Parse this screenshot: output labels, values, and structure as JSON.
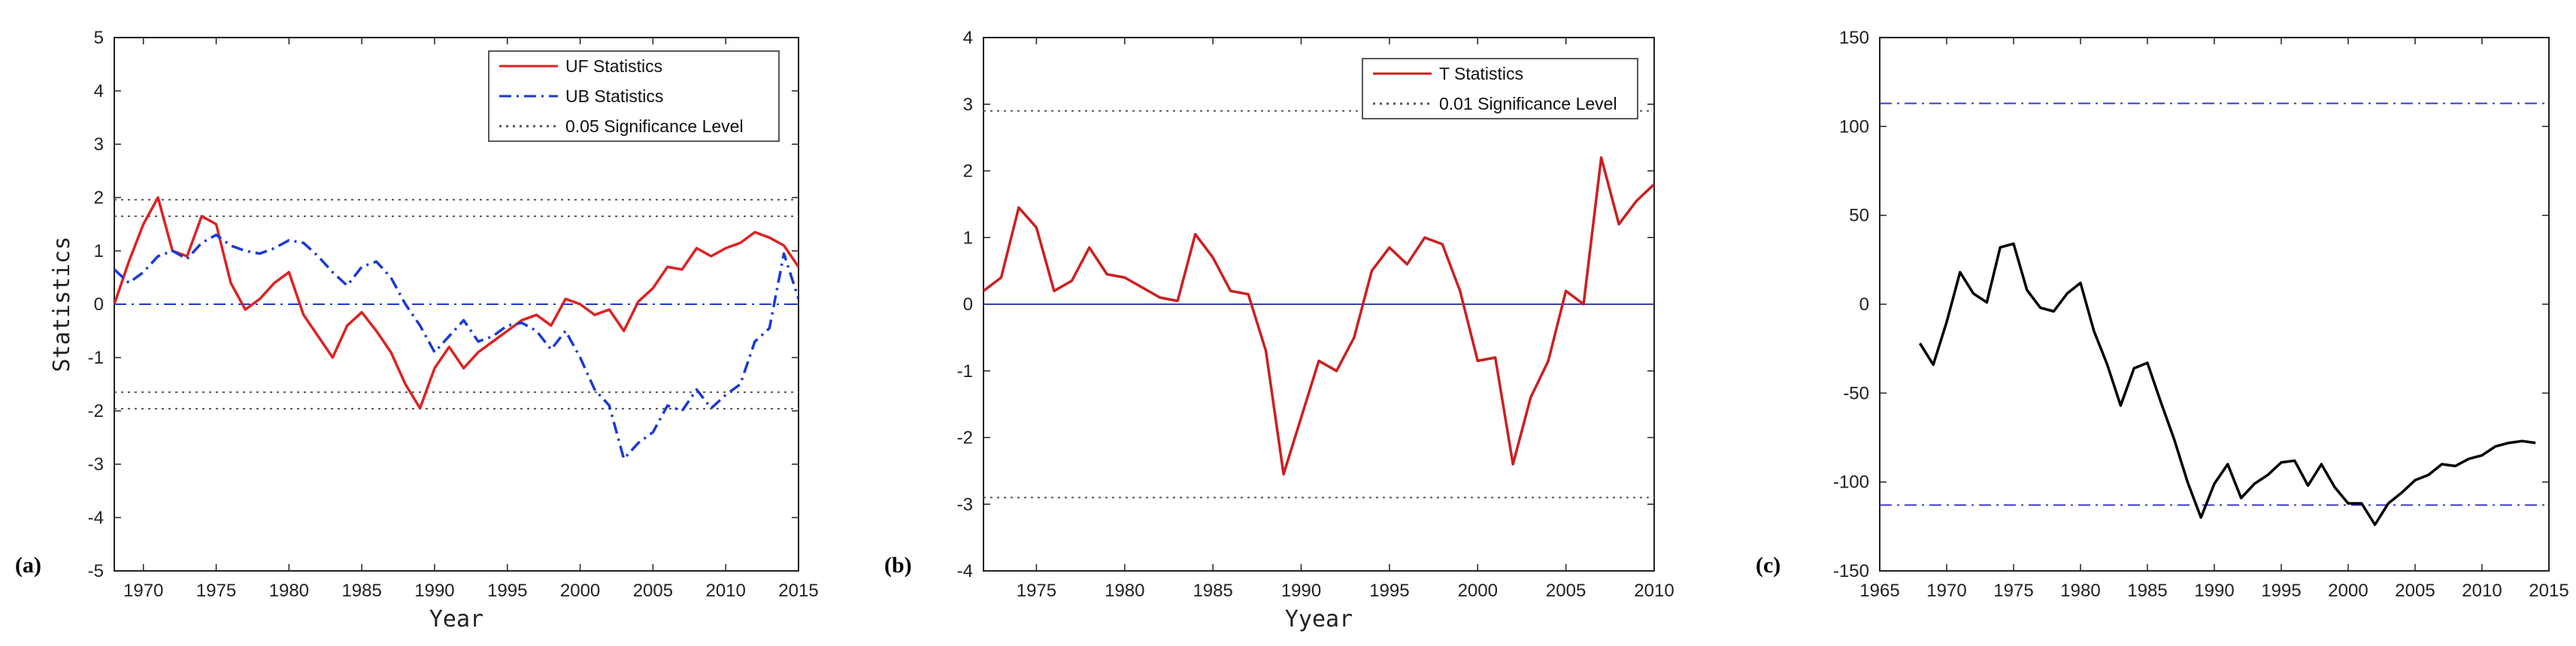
{
  "chart_data": [
    {
      "panel_label": "(a)",
      "type": "line",
      "xlabel": "Year",
      "ylabel": "Statistics",
      "xlim": [
        1968,
        2015
      ],
      "ylim": [
        -5,
        5
      ],
      "xticks": [
        1970,
        1975,
        1980,
        1985,
        1990,
        1995,
        2000,
        2005,
        2010,
        2015
      ],
      "xtick_labels": [
        "1970",
        "1975",
        "1980",
        "1985",
        "1990",
        "1995",
        "2000",
        "2005",
        "2010",
        "2015"
      ],
      "yticks": [
        -5,
        -4,
        -3,
        -2,
        -1,
        0,
        1,
        2,
        3,
        4,
        5
      ],
      "ytick_labels": [
        "-5",
        "-4",
        "-3",
        "-2",
        "-1",
        "0",
        "1",
        "2",
        "3",
        "4",
        "5"
      ],
      "grid": false,
      "legend_position": "top-right",
      "x": [
        1968,
        1969,
        1970,
        1971,
        1972,
        1973,
        1974,
        1975,
        1976,
        1977,
        1978,
        1979,
        1980,
        1981,
        1982,
        1983,
        1984,
        1985,
        1986,
        1987,
        1988,
        1989,
        1990,
        1991,
        1992,
        1993,
        1994,
        1995,
        1996,
        1997,
        1998,
        1999,
        2000,
        2001,
        2002,
        2003,
        2004,
        2005,
        2006,
        2007,
        2008,
        2009,
        2010,
        2011,
        2012,
        2013,
        2014,
        2015
      ],
      "series": [
        {
          "name": "UF Statistics",
          "style": "solid",
          "color": "#dd2222",
          "values": [
            0,
            0.8,
            1.5,
            2.0,
            1.0,
            0.9,
            1.65,
            1.5,
            0.4,
            -0.1,
            0.1,
            0.4,
            0.6,
            -0.2,
            -0.6,
            -1.0,
            -0.4,
            -0.15,
            -0.5,
            -0.9,
            -1.5,
            -1.95,
            -1.2,
            -0.8,
            -1.2,
            -0.9,
            -0.7,
            -0.5,
            -0.3,
            -0.2,
            -0.4,
            0.1,
            0.0,
            -0.2,
            -0.1,
            -0.5,
            0.05,
            0.3,
            0.7,
            0.65,
            1.05,
            0.9,
            1.05,
            1.15,
            1.35,
            1.25,
            1.1,
            0.7
          ]
        },
        {
          "name": "UB Statistics",
          "style": "dashdot",
          "color": "#1a3ad6",
          "values": [
            0.65,
            0.4,
            0.6,
            0.9,
            1.0,
            0.85,
            1.15,
            1.3,
            1.1,
            1.0,
            0.95,
            1.05,
            1.2,
            1.15,
            0.9,
            0.6,
            0.35,
            0.7,
            0.8,
            0.5,
            0.0,
            -0.4,
            -0.9,
            -0.6,
            -0.3,
            -0.7,
            -0.6,
            -0.4,
            -0.35,
            -0.5,
            -0.85,
            -0.5,
            -1.0,
            -1.6,
            -1.9,
            -2.9,
            -2.6,
            -2.4,
            -1.9,
            -2.0,
            -1.6,
            -1.95,
            -1.7,
            -1.5,
            -0.7,
            -0.45,
            0.95,
            0.1
          ]
        }
      ],
      "reference_lines": [
        {
          "name": "0.05 Significance Level",
          "style": "dotted",
          "color": "#555555",
          "values": [
            1.96,
            -1.96,
            1.65,
            -1.65
          ]
        },
        {
          "style": "dashdot",
          "color": "#1a3ad6",
          "values": [
            0
          ]
        }
      ]
    },
    {
      "panel_label": "(b)",
      "type": "line",
      "xlabel": "Yyear",
      "ylabel": "",
      "xlim": [
        1972,
        2010
      ],
      "ylim": [
        -4,
        4
      ],
      "xticks": [
        1975,
        1980,
        1985,
        1990,
        1995,
        2000,
        2005,
        2010
      ],
      "xtick_labels": [
        "1975",
        "1980",
        "1985",
        "1990",
        "1995",
        "2000",
        "2005",
        "2010"
      ],
      "yticks": [
        -4,
        -3,
        -2,
        -1,
        0,
        1,
        2,
        3,
        4
      ],
      "ytick_labels": [
        "-4",
        "-3",
        "-2",
        "-1",
        "0",
        "1",
        "2",
        "3",
        "4"
      ],
      "grid": false,
      "legend_position": "top-right",
      "x": [
        1972,
        1973,
        1974,
        1975,
        1976,
        1977,
        1978,
        1979,
        1980,
        1981,
        1982,
        1983,
        1984,
        1985,
        1986,
        1987,
        1988,
        1989,
        1990,
        1991,
        1992,
        1993,
        1994,
        1995,
        1996,
        1997,
        1998,
        1999,
        2000,
        2001,
        2002,
        2003,
        2004,
        2005,
        2006,
        2007,
        2008,
        2009,
        2010
      ],
      "series": [
        {
          "name": "T Statistics",
          "style": "solid",
          "color": "#cc1f1f",
          "values": [
            0.2,
            0.4,
            1.45,
            1.15,
            0.2,
            0.35,
            0.85,
            0.45,
            0.4,
            0.25,
            0.1,
            0.05,
            1.05,
            0.7,
            0.2,
            0.15,
            -0.7,
            -2.55,
            -1.7,
            -0.85,
            -1.0,
            -0.5,
            0.5,
            0.85,
            0.6,
            1.0,
            0.9,
            0.2,
            -0.85,
            -0.8,
            -2.4,
            -1.4,
            -0.85,
            0.2,
            0.0,
            2.2,
            1.2,
            1.55,
            1.8
          ]
        }
      ],
      "reference_lines": [
        {
          "name": "0.01 Significance Level",
          "style": "dotted",
          "color": "#555555",
          "values": [
            2.9,
            -2.9
          ]
        },
        {
          "style": "solid",
          "color": "#3344aa",
          "values": [
            0
          ]
        }
      ]
    },
    {
      "panel_label": "(c)",
      "type": "line",
      "xlabel": "",
      "ylabel": "",
      "xlim": [
        1965,
        2015
      ],
      "ylim": [
        -150,
        150
      ],
      "xticks": [
        1965,
        1970,
        1975,
        1980,
        1985,
        1990,
        1995,
        2000,
        2005,
        2010,
        2015
      ],
      "xtick_labels": [
        "1965",
        "1970",
        "1975",
        "1980",
        "1985",
        "1990",
        "1995",
        "2000",
        "2005",
        "2010",
        "2015"
      ],
      "yticks": [
        -150,
        -100,
        -50,
        0,
        50,
        100,
        150
      ],
      "ytick_labels": [
        "-150",
        "-100",
        "-50",
        "0",
        "50",
        "100",
        "150"
      ],
      "grid": false,
      "x": [
        1968,
        1969,
        1970,
        1971,
        1972,
        1973,
        1974,
        1975,
        1976,
        1977,
        1978,
        1979,
        1980,
        1981,
        1982,
        1983,
        1984,
        1985,
        1986,
        1987,
        1988,
        1989,
        1990,
        1991,
        1992,
        1993,
        1994,
        1995,
        1996,
        1997,
        1998,
        1999,
        2000,
        2001,
        2002,
        2003,
        2004,
        2005,
        2006,
        2007,
        2008,
        2009,
        2010,
        2011,
        2012,
        2013,
        2014
      ],
      "series": [
        {
          "style": "solid",
          "color": "#000000",
          "values": [
            -22,
            -34,
            -10,
            18,
            6,
            1,
            32,
            34,
            8,
            -2,
            -4,
            6,
            12,
            -15,
            -34,
            -57,
            -36,
            -33,
            -55,
            -76,
            -100,
            -120,
            -101,
            -90,
            -109,
            -101,
            -96,
            -89,
            -88,
            -102,
            -90,
            -103,
            -112,
            -112,
            -124,
            -112,
            -106,
            -99,
            -96,
            -90,
            -91,
            -87,
            -85,
            -80,
            -78,
            -77,
            -78
          ]
        }
      ],
      "reference_lines": [
        {
          "style": "dashdot",
          "color": "#3b3bc8",
          "values": [
            113,
            -113
          ]
        }
      ]
    }
  ]
}
